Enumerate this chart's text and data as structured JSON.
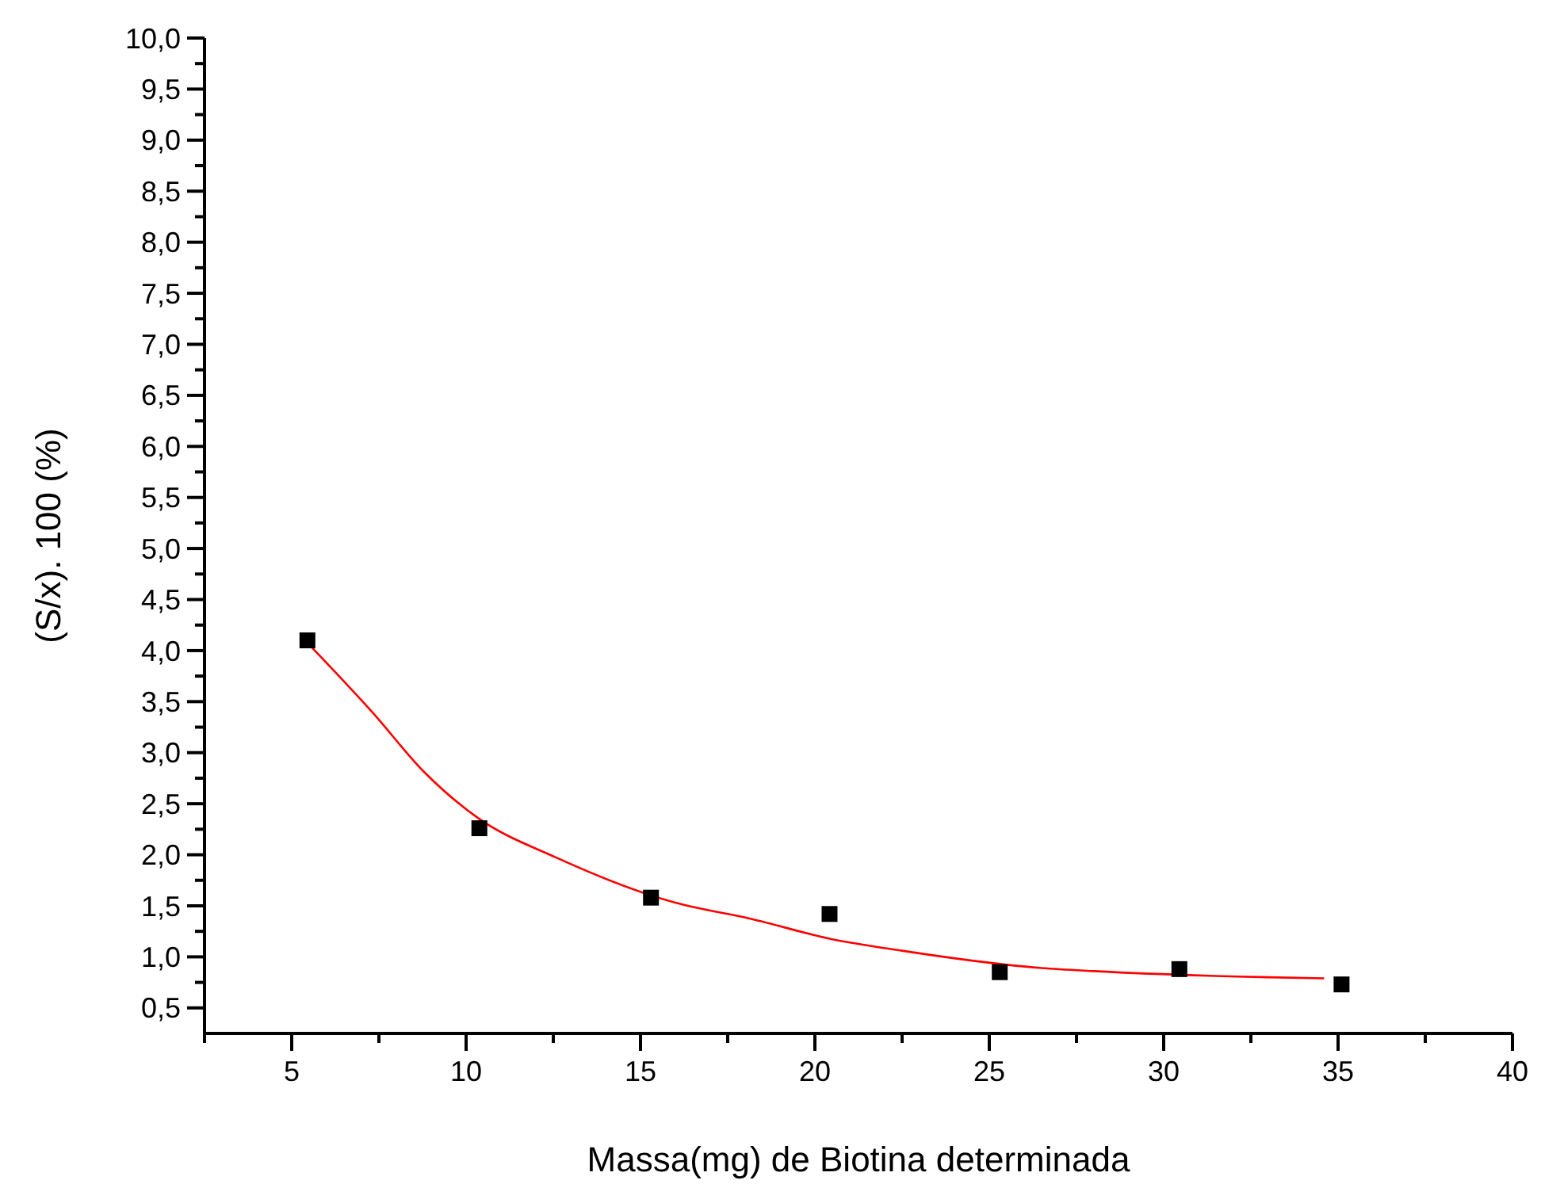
{
  "chart_data": {
    "type": "scatter",
    "xlabel": "Massa(mg) de Biotina determinada",
    "ylabel": "(S/x). 100 (%)",
    "xlim": [
      2.5,
      40
    ],
    "ylim": [
      0.25,
      10
    ],
    "xticks": [
      {
        "value": 2.5,
        "label": null
      },
      5,
      {
        "value": 7.5,
        "label": null
      },
      10,
      {
        "value": 12.5,
        "label": null
      },
      15,
      {
        "value": 17.5,
        "label": null
      },
      20,
      {
        "value": 22.5,
        "label": null
      },
      25,
      {
        "value": 27.5,
        "label": null
      },
      30,
      {
        "value": 32.5,
        "label": null
      },
      35,
      {
        "value": 37.5,
        "label": null
      },
      40
    ],
    "yticks": [
      {
        "value": 0.5,
        "label": "0,5"
      },
      {
        "value": 0.75,
        "label": null
      },
      {
        "value": 1,
        "label": "1,0"
      },
      {
        "value": 1.25,
        "label": null
      },
      {
        "value": 1.5,
        "label": "1,5"
      },
      {
        "value": 1.75,
        "label": null
      },
      {
        "value": 2,
        "label": "2,0"
      },
      {
        "value": 2.25,
        "label": null
      },
      {
        "value": 2.5,
        "label": "2,5"
      },
      {
        "value": 2.75,
        "label": null
      },
      {
        "value": 3,
        "label": "3,0"
      },
      {
        "value": 3.25,
        "label": null
      },
      {
        "value": 3.5,
        "label": "3,5"
      },
      {
        "value": 3.75,
        "label": null
      },
      {
        "value": 4,
        "label": "4,0"
      },
      {
        "value": 4.25,
        "label": null
      },
      {
        "value": 4.5,
        "label": "4,5"
      },
      {
        "value": 4.75,
        "label": null
      },
      {
        "value": 5,
        "label": "5,0"
      },
      {
        "value": 5.25,
        "label": null
      },
      {
        "value": 5.5,
        "label": "5,5"
      },
      {
        "value": 5.75,
        "label": null
      },
      {
        "value": 6,
        "label": "6,0"
      },
      {
        "value": 6.25,
        "label": null
      },
      {
        "value": 6.5,
        "label": "6,5"
      },
      {
        "value": 6.75,
        "label": null
      },
      {
        "value": 7,
        "label": "7,0"
      },
      {
        "value": 7.25,
        "label": null
      },
      {
        "value": 7.5,
        "label": "7,5"
      },
      {
        "value": 7.75,
        "label": null
      },
      {
        "value": 8,
        "label": "8,0"
      },
      {
        "value": 8.25,
        "label": null
      },
      {
        "value": 8.5,
        "label": "8,5"
      },
      {
        "value": 8.75,
        "label": null
      },
      {
        "value": 9,
        "label": "9,0"
      },
      {
        "value": 9.25,
        "label": null
      },
      {
        "value": 9.5,
        "label": "9,5"
      },
      {
        "value": 9.75,
        "label": null
      },
      {
        "value": 10,
        "label": "10,0"
      }
    ],
    "grid": false,
    "series": [
      {
        "type": "line",
        "color": "#ff0000",
        "marker": "none",
        "line_style": "solid",
        "x": [
          5.55,
          7.3,
          8.8,
          10.3,
          12.6,
          16,
          18.2,
          20.4,
          22.5,
          26.5,
          28,
          33,
          34.6
        ],
        "values": [
          4.04,
          3.4,
          2.81,
          2.37,
          1.97,
          1.53,
          1.37,
          1.18,
          1.06,
          0.89,
          0.86,
          0.8,
          0.79
        ]
      },
      {
        "type": "scatter",
        "color": "#000000",
        "marker": "square",
        "x": [
          5.45,
          10.38,
          15.3,
          20.42,
          25.3,
          30.45,
          35.1
        ],
        "values": [
          4.1,
          2.26,
          1.58,
          1.42,
          0.85,
          0.88,
          0.73
        ]
      }
    ]
  }
}
